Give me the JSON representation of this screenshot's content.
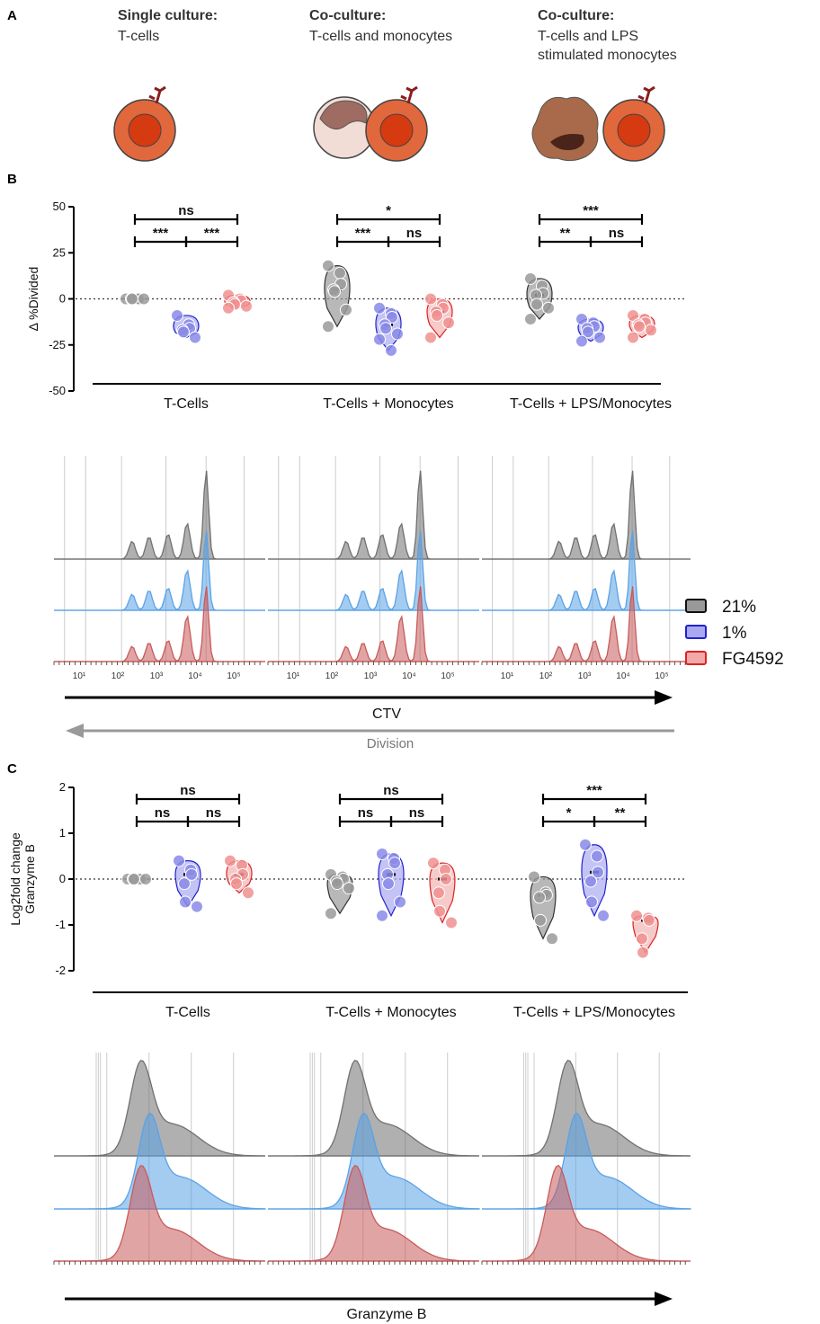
{
  "panels": {
    "a": "A",
    "b": "B",
    "c": "C"
  },
  "headers": [
    {
      "bold": "Single culture:",
      "lines": [
        "T-cells"
      ]
    },
    {
      "bold": "Co-culture:",
      "lines": [
        "T-cells and monocytes"
      ]
    },
    {
      "bold": "Co-culture:",
      "lines": [
        "T-cells and LPS",
        "stimulated monocytes"
      ]
    }
  ],
  "groups": [
    "T-Cells",
    "T-Cells + Monocytes",
    "T-Cells + LPS/Monocytes"
  ],
  "colors": {
    "c21": "#8a8a8a",
    "c1": "#6a6ae0",
    "cFG": "#ee8080",
    "legend21_fill": "#999999",
    "legend1_fill": "#a9a9f2",
    "legendFG_fill": "#f4a9a9",
    "hist21": "#707070",
    "hist1": "#5aa2e6",
    "histFG": "#c85a5a"
  },
  "legend": [
    {
      "label": "21%",
      "key": "c21"
    },
    {
      "label": "1%",
      "key": "c1"
    },
    {
      "label": "FG4592",
      "key": "cFG"
    }
  ],
  "arrows": {
    "ctv": "CTV",
    "division": "Division",
    "gzmb": "Granzyme B"
  },
  "hist_ticks": [
    "10¹",
    "10²",
    "10³",
    "10⁴",
    "10⁵"
  ],
  "chart_data": [
    {
      "type": "scatter",
      "ylabel": "Δ %Divided",
      "ylim": [
        -50,
        50
      ],
      "yticks": [
        50,
        25,
        0,
        -25,
        -50
      ],
      "categories": [
        "T-Cells",
        "T-Cells + Monocytes",
        "T-Cells + LPS/Monocytes"
      ],
      "series": [
        {
          "name": "21%",
          "values": [
            [
              0,
              0,
              0,
              0,
              0,
              0
            ],
            [
              18,
              14,
              8,
              5,
              4,
              -6,
              -15
            ],
            [
              11,
              7,
              3,
              2,
              -3,
              -5,
              -11
            ]
          ]
        },
        {
          "name": "1%",
          "values": [
            [
              -9,
              -14,
              -16,
              -17,
              -18,
              -21
            ],
            [
              -5,
              -8,
              -10,
              -14,
              -16,
              -19,
              -22,
              -28
            ],
            [
              -11,
              -13,
              -15,
              -16,
              -18,
              -21,
              -23
            ]
          ]
        },
        {
          "name": "FG4592",
          "values": [
            [
              2,
              0,
              -1,
              -2,
              -3,
              -4,
              -5
            ],
            [
              0,
              -3,
              -5,
              -7,
              -9,
              -13,
              -21
            ],
            [
              -9,
              -11,
              -13,
              -14,
              -15,
              -17,
              -21
            ]
          ]
        }
      ],
      "significance": [
        [
          {
            "pair": [
              0,
              2
            ],
            "label": "ns"
          },
          {
            "pair": [
              0,
              1
            ],
            "label": "***"
          },
          {
            "pair": [
              1,
              2
            ],
            "label": "***"
          }
        ],
        [
          {
            "pair": [
              0,
              2
            ],
            "label": "*"
          },
          {
            "pair": [
              0,
              1
            ],
            "label": "***"
          },
          {
            "pair": [
              1,
              2
            ],
            "label": "ns"
          }
        ],
        [
          {
            "pair": [
              0,
              2
            ],
            "label": "***"
          },
          {
            "pair": [
              0,
              1
            ],
            "label": "**"
          },
          {
            "pair": [
              1,
              2
            ],
            "label": "ns"
          }
        ]
      ]
    },
    {
      "type": "scatter",
      "ylabel": "Log2fold change Granzyme B",
      "ylabel_lines": [
        "Log2fold change",
        "Granzyme B"
      ],
      "ylim": [
        -2,
        2
      ],
      "yticks": [
        2,
        1,
        0,
        -1,
        -2
      ],
      "categories": [
        "T-Cells",
        "T-Cells + Monocytes",
        "T-Cells + LPS/Monocytes"
      ],
      "series": [
        {
          "name": "21%",
          "values": [
            [
              0,
              0,
              0,
              0,
              0,
              0
            ],
            [
              0.1,
              0.05,
              0,
              -0.05,
              -0.1,
              -0.2,
              -0.75
            ],
            [
              0.05,
              -0.3,
              -0.35,
              -0.4,
              -0.9,
              -1.3
            ]
          ]
        },
        {
          "name": "1%",
          "values": [
            [
              0.4,
              0.2,
              0.1,
              -0.1,
              -0.5,
              -0.6
            ],
            [
              0.55,
              0.45,
              0.35,
              0.1,
              -0.1,
              -0.5,
              -0.8
            ],
            [
              0.75,
              0.5,
              0.15,
              -0.05,
              -0.5,
              -0.8
            ]
          ]
        },
        {
          "name": "FG4592",
          "values": [
            [
              0.4,
              0.3,
              0.1,
              0,
              -0.1,
              -0.3
            ],
            [
              0.35,
              0.2,
              0,
              -0.3,
              -0.7,
              -0.95
            ],
            [
              -0.8,
              -0.85,
              -0.9,
              -1.3,
              -1.6
            ]
          ]
        }
      ],
      "significance": [
        [
          {
            "pair": [
              0,
              2
            ],
            "label": "ns"
          },
          {
            "pair": [
              0,
              1
            ],
            "label": "ns"
          },
          {
            "pair": [
              1,
              2
            ],
            "label": "ns"
          }
        ],
        [
          {
            "pair": [
              0,
              2
            ],
            "label": "ns"
          },
          {
            "pair": [
              0,
              1
            ],
            "label": "ns"
          },
          {
            "pair": [
              1,
              2
            ],
            "label": "ns"
          }
        ],
        [
          {
            "pair": [
              0,
              2
            ],
            "label": "***"
          },
          {
            "pair": [
              0,
              1
            ],
            "label": "*"
          },
          {
            "pair": [
              1,
              2
            ],
            "label": "**"
          }
        ]
      ]
    }
  ]
}
